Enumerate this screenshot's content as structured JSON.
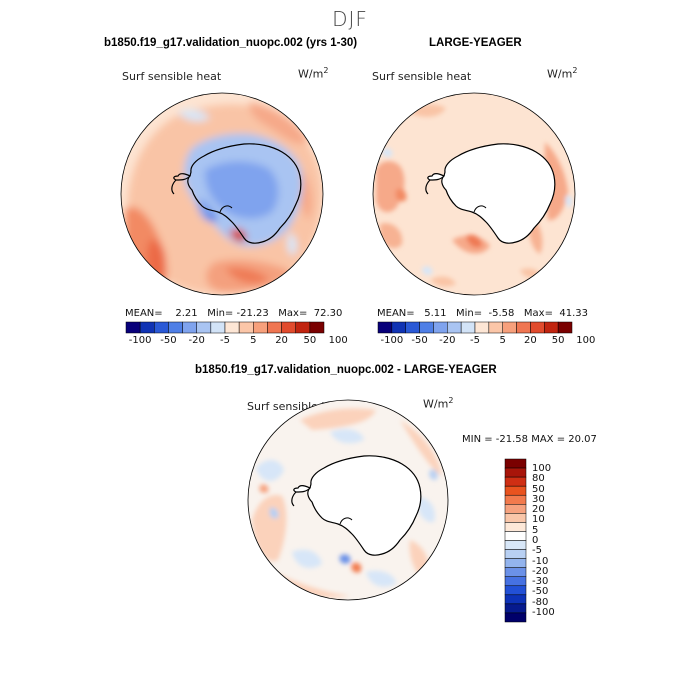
{
  "page": {
    "title": "DJF"
  },
  "panels": {
    "model": {
      "title": "b1850.f19_g17.validation_nuopc.002 (yrs 1-30)",
      "field": "Surf sensible heat",
      "units": "W/m",
      "units_exp": "2",
      "mean_label": "MEAN=",
      "mean": "2.21",
      "min_label": "Min=",
      "min": "-21.23",
      "max_label": "Max=",
      "max": "72.30"
    },
    "obs": {
      "title": "LARGE-YEAGER",
      "field": "Surf sensible heat",
      "units": "W/m",
      "units_exp": "2",
      "mean_label": "MEAN=",
      "mean": "5.11",
      "min_label": "Min=",
      "min": "-5.58",
      "max_label": "Max=",
      "max": "41.33"
    },
    "diff": {
      "title": "b1850.f19_g17.validation_nuopc.002 - LARGE-YEAGER",
      "field": "Surf sensible heat",
      "units": "W/m",
      "units_exp": "2",
      "minmax": "MIN = -21.58 MAX =  20.07"
    }
  },
  "colorbar_h": {
    "colors": [
      "#08007a",
      "#1033b4",
      "#2a59d6",
      "#4f7fe6",
      "#7fa3ee",
      "#a9c4f2",
      "#d2e3f7",
      "#fde6d5",
      "#fbc6a8",
      "#f7a07c",
      "#ef7652",
      "#e14b2d",
      "#c1240f",
      "#7a0000"
    ],
    "tick_labels": [
      "-100",
      "-50",
      "-20",
      "-5",
      "5",
      "20",
      "50",
      "100"
    ]
  },
  "colorbar_v": {
    "colors": [
      "#7a0000",
      "#a8150a",
      "#cf2f14",
      "#e9531f",
      "#f27a4d",
      "#f6a27f",
      "#f9c6a9",
      "#fde8d8",
      "#ffffff",
      "#d8e7f8",
      "#b8d0f3",
      "#93b4ee",
      "#6b91e8",
      "#4671e2",
      "#2250d6",
      "#0d32b8",
      "#061a8e",
      "#00006a"
    ],
    "labels": [
      "100",
      "80",
      "50",
      "30",
      "20",
      "10",
      "5",
      "0",
      "-5",
      "-10",
      "-20",
      "-30",
      "-50",
      "-80",
      "-100"
    ]
  },
  "chart_data": [
    {
      "type": "heatmap",
      "title": "b1850.f19_g17.validation_nuopc.002 (yrs 1-30)",
      "field": "Surf sensible heat",
      "units": "W/m^2",
      "projection": "south polar stereographic",
      "stats": {
        "mean": 2.21,
        "min": -21.23,
        "max": 72.3
      },
      "contour_levels": [
        -100,
        -80,
        -50,
        -30,
        -20,
        -10,
        -5,
        0,
        5,
        10,
        20,
        30,
        50,
        80,
        100
      ]
    },
    {
      "type": "heatmap",
      "title": "LARGE-YEAGER",
      "field": "Surf sensible heat",
      "units": "W/m^2",
      "projection": "south polar stereographic",
      "stats": {
        "mean": 5.11,
        "min": -5.58,
        "max": 41.33
      },
      "contour_levels": [
        -100,
        -80,
        -50,
        -30,
        -20,
        -10,
        -5,
        0,
        5,
        10,
        20,
        30,
        50,
        80,
        100
      ]
    },
    {
      "type": "heatmap",
      "title": "b1850.f19_g17.validation_nuopc.002 - LARGE-YEAGER",
      "field": "Surf sensible heat",
      "units": "W/m^2",
      "projection": "south polar stereographic",
      "stats": {
        "min": -21.58,
        "max": 20.07
      },
      "contour_levels": [
        -100,
        -80,
        -50,
        -30,
        -20,
        -10,
        -5,
        0,
        5,
        10,
        20,
        30,
        50,
        80,
        100
      ]
    }
  ]
}
